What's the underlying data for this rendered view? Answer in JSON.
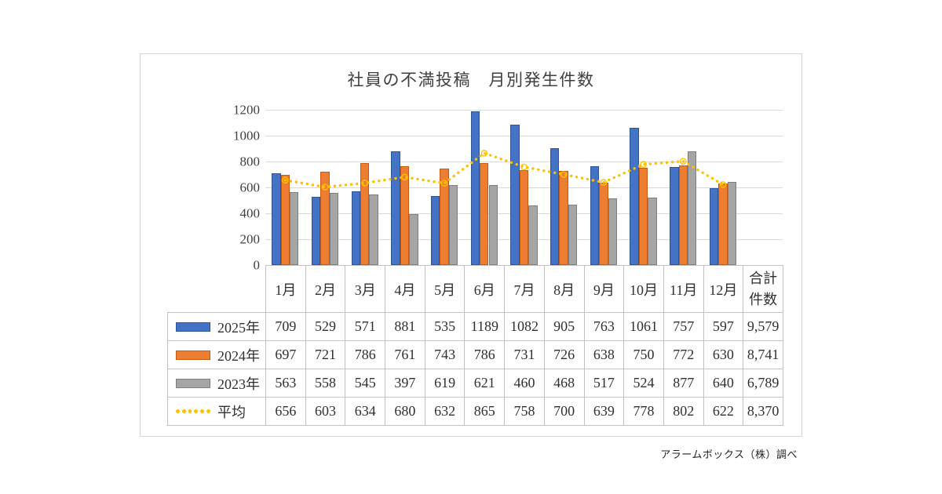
{
  "title": "社員の不満投稿　月別発生件数",
  "footer": "アラームボックス（株）調べ",
  "colors": {
    "bar_2025": "#4472C4",
    "bar_2025_border": "#2E5597",
    "bar_2024": "#ED7D31",
    "bar_2024_border": "#C55A11",
    "bar_2023": "#A5A5A5",
    "bar_2023_border": "#7F7F7F",
    "average_line": "#FFC000",
    "gridline": "#D9D9D9",
    "table_border": "#C2C2C2",
    "panel_border": "#D6D6D6"
  },
  "chart_data": {
    "type": "bar",
    "subtype": "grouped-bars-with-dotted-average-line",
    "title": "社員の不満投稿　月別発生件数",
    "categories": [
      "1月",
      "2月",
      "3月",
      "4月",
      "5月",
      "6月",
      "7月",
      "8月",
      "9月",
      "10月",
      "11月",
      "12月"
    ],
    "total_column_label": "合計件数",
    "series": [
      {
        "name": "2025年",
        "type": "bar",
        "color": "#4472C4",
        "border_color": "#2E5597",
        "values": [
          709,
          529,
          571,
          881,
          535,
          1189,
          1082,
          905,
          763,
          1061,
          757,
          597
        ],
        "total": "9,579"
      },
      {
        "name": "2024年",
        "type": "bar",
        "color": "#ED7D31",
        "border_color": "#C55A11",
        "values": [
          697,
          721,
          786,
          761,
          743,
          786,
          731,
          726,
          638,
          750,
          772,
          630
        ],
        "total": "8,741"
      },
      {
        "name": "2023年",
        "type": "bar",
        "color": "#A5A5A5",
        "border_color": "#7F7F7F",
        "values": [
          563,
          558,
          545,
          397,
          619,
          621,
          460,
          468,
          517,
          524,
          877,
          640
        ],
        "total": "6,789"
      },
      {
        "name": "平均",
        "type": "line",
        "line_style": "dotted",
        "color": "#FFC000",
        "values": [
          656,
          603,
          634,
          680,
          632,
          865,
          758,
          700,
          639,
          778,
          802,
          622
        ],
        "total": "8,370"
      }
    ],
    "ylim": [
      0,
      1200
    ],
    "ytick_step": 200,
    "ytick_labels": [
      "0",
      "200",
      "400",
      "600",
      "800",
      "1000",
      "1200"
    ],
    "grid": true,
    "legend_position": "data-table-left"
  }
}
